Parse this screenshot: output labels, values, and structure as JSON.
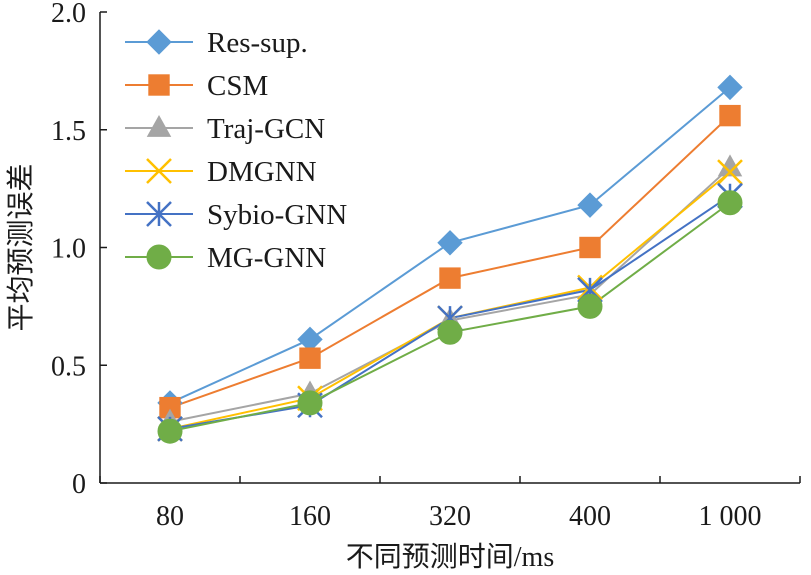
{
  "chart_data": {
    "type": "line",
    "title": "",
    "xlabel": "不同预测时间/ms",
    "ylabel": "平均预测误差",
    "categories": [
      "80",
      "160",
      "320",
      "400",
      "1 000"
    ],
    "ylim": [
      0,
      2.0
    ],
    "yticks": [
      "0",
      "0.5",
      "1.0",
      "1.5",
      "2.0"
    ],
    "grid": false,
    "legend_position": "top-left",
    "series": [
      {
        "name": "Res-sup.",
        "marker": "diamond",
        "color": "#5b9bd5",
        "values": [
          0.34,
          0.61,
          1.02,
          1.18,
          1.68
        ]
      },
      {
        "name": "CSM",
        "marker": "square",
        "color": "#ed7d31",
        "values": [
          0.32,
          0.53,
          0.87,
          1.0,
          1.56
        ]
      },
      {
        "name": "Traj-GCN",
        "marker": "triangle",
        "color": "#a5a5a5",
        "values": [
          0.26,
          0.38,
          0.69,
          0.8,
          1.34
        ]
      },
      {
        "name": "DMGNN",
        "marker": "x",
        "color": "#ffc000",
        "values": [
          0.23,
          0.36,
          0.7,
          0.83,
          1.32
        ]
      },
      {
        "name": "Sybio-GNN",
        "marker": "star",
        "color": "#4472c4",
        "values": [
          0.23,
          0.33,
          0.7,
          0.82,
          1.22
        ]
      },
      {
        "name": "MG-GNN",
        "marker": "circle",
        "color": "#70ad47",
        "values": [
          0.22,
          0.34,
          0.64,
          0.75,
          1.19
        ]
      }
    ]
  }
}
